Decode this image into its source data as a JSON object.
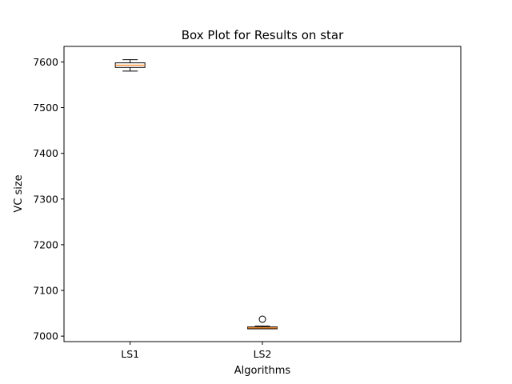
{
  "chart_data": {
    "type": "box",
    "title": "Box Plot for Results on star",
    "xlabel": "Algorithms",
    "ylabel": "VC size",
    "categories": [
      "LS1",
      "LS2"
    ],
    "ylim": [
      6988,
      7634
    ],
    "yticks": [
      7000,
      7100,
      7200,
      7300,
      7400,
      7500,
      7600
    ],
    "grid": false,
    "colors": {
      "box": "#000000",
      "median": "#ff7f0e",
      "axes": "#000000"
    },
    "boxes": [
      {
        "name": "LS1",
        "whisker_low": 7580,
        "q1": 7588,
        "median": 7593,
        "q3": 7598,
        "whisker_high": 7605,
        "outliers": []
      },
      {
        "name": "LS2",
        "whisker_low": 7016,
        "q1": 7016,
        "median": 7018,
        "q3": 7020,
        "whisker_high": 7022,
        "outliers": [
          7037
        ]
      }
    ]
  }
}
